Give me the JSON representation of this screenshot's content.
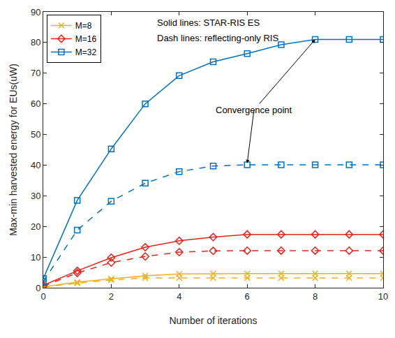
{
  "chart_data": {
    "type": "line",
    "x_label": "Number of iterations",
    "y_label": "Max-min harvested energy for EUs(uW)",
    "x": [
      0,
      1,
      2,
      3,
      4,
      5,
      6,
      7,
      8,
      9,
      10
    ],
    "xlim": [
      0,
      10
    ],
    "xticks": [
      0,
      2,
      4,
      6,
      8,
      10
    ],
    "ylim": [
      0,
      90
    ],
    "yticks": [
      0,
      10,
      20,
      30,
      40,
      50,
      60,
      70,
      80,
      90
    ],
    "grid": false,
    "legend": "upper left",
    "series": [
      {
        "name": "M=8",
        "color": "#EDB120",
        "marker": "x",
        "line_style": "solid",
        "values": [
          0.3,
          1.8,
          2.9,
          3.9,
          4.5,
          4.6,
          4.6,
          4.6,
          4.6,
          4.6,
          4.6
        ]
      },
      {
        "name": "M=16",
        "color": "#E3231B",
        "marker": "diamond",
        "line_style": "solid",
        "values": [
          0.8,
          5.5,
          9.8,
          13.2,
          15.3,
          16.5,
          17.4,
          17.4,
          17.4,
          17.4,
          17.4
        ]
      },
      {
        "name": "M=32",
        "color": "#0072BD",
        "marker": "square",
        "line_style": "solid",
        "values": [
          3,
          28.5,
          45.3,
          60,
          69.2,
          73.7,
          76.4,
          79.3,
          81,
          81,
          81
        ]
      },
      {
        "color": "#EDB120",
        "marker": "x",
        "line_style": "dash",
        "values": [
          0.2,
          1.5,
          2.5,
          3.2,
          3.2,
          3.2,
          3.2,
          3.2,
          3.2,
          3.2,
          3.2
        ]
      },
      {
        "color": "#E3231B",
        "marker": "diamond",
        "line_style": "dash",
        "values": [
          0.5,
          4.8,
          8.2,
          10.2,
          11.6,
          12,
          12.1,
          12.1,
          12.1,
          12.1,
          12.1
        ]
      },
      {
        "color": "#0072BD",
        "marker": "square",
        "line_style": "dash",
        "values": [
          2,
          18.8,
          28.2,
          34.1,
          37.9,
          39.7,
          40.1,
          40.1,
          40.1,
          40.1,
          40.1
        ]
      }
    ],
    "annotations": [
      {
        "text": "Solid lines: STAR-RIS ES",
        "x": 3.3,
        "y": 86.5
      },
      {
        "text": "Dash lines: reflecting-only RIS",
        "x": 3.3,
        "y": 81.5
      },
      {
        "text": "Convergence point",
        "x": 6.2,
        "y": 58,
        "points": [
          [
            8,
            81
          ],
          [
            6,
            40.6
          ]
        ]
      }
    ]
  }
}
